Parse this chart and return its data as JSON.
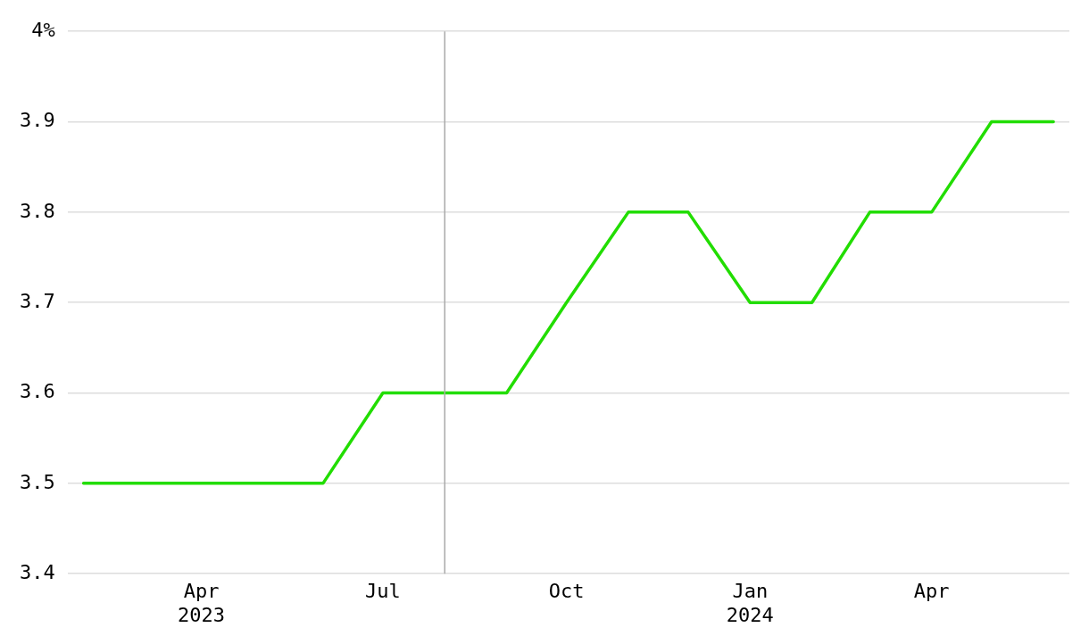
{
  "chart_data": {
    "type": "line",
    "x": [
      "2023-02",
      "2023-03",
      "2023-04",
      "2023-05",
      "2023-06",
      "2023-07",
      "2023-08",
      "2023-09",
      "2023-10",
      "2023-11",
      "2023-12",
      "2024-01",
      "2024-02",
      "2024-03",
      "2024-04",
      "2024-05",
      "2024-06"
    ],
    "series": [
      {
        "color": "#22dd00",
        "values": [
          3.5,
          3.5,
          3.5,
          3.5,
          3.5,
          3.6,
          3.6,
          3.6,
          3.7,
          3.8,
          3.8,
          3.7,
          3.7,
          3.8,
          3.8,
          3.9,
          3.9
        ]
      }
    ],
    "xlim": [
      "2023-01-24",
      "2024-06-09"
    ],
    "xticks": [
      {
        "value": "2023-04",
        "label": "Apr\n2023"
      },
      {
        "value": "2023-07",
        "label": "Jul"
      },
      {
        "value": "2023-10",
        "label": "Oct"
      },
      {
        "value": "2024-01",
        "label": "Jan\n2024"
      },
      {
        "value": "2024-04",
        "label": "Apr"
      }
    ],
    "ylim": [
      3.4,
      4
    ],
    "yticks": [
      3.4,
      3.5,
      3.6,
      3.7,
      3.8,
      3.9,
      {
        "value": 4,
        "label": "4%"
      }
    ],
    "ref_lines": [
      {
        "axis": "x",
        "value": "2023-08",
        "color": "#aaaaaa"
      }
    ],
    "grid": "y",
    "legend": false,
    "marker": "none",
    "line_style": "solid"
  }
}
